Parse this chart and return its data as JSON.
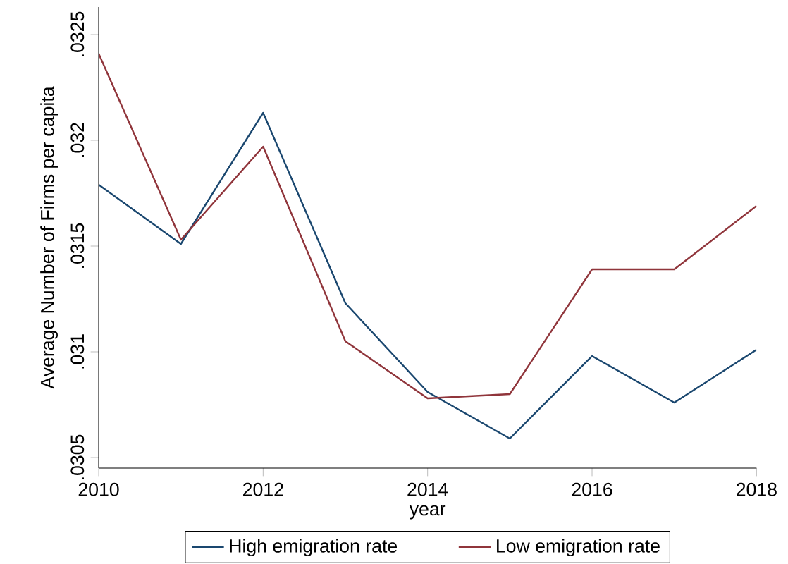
{
  "chart_data": {
    "type": "line",
    "xlabel": "year",
    "ylabel": "Average Number of Firms per capita",
    "x": [
      2010,
      2011,
      2012,
      2013,
      2014,
      2015,
      2016,
      2017,
      2018
    ],
    "series": [
      {
        "name": "High emigration rate",
        "color": "#1a476f",
        "values": [
          0.03179,
          0.03151,
          0.03213,
          0.03123,
          0.03081,
          0.03059,
          0.03098,
          0.03076,
          0.03101
        ]
      },
      {
        "name": "Low emigration rate",
        "color": "#90353b",
        "values": [
          0.03241,
          0.03153,
          0.03197,
          0.03105,
          0.03078,
          0.0308,
          0.03139,
          0.03139,
          0.03169
        ]
      }
    ],
    "xlim": [
      2010,
      2018
    ],
    "xticks": [
      2010,
      2012,
      2014,
      2016,
      2018
    ],
    "ylim": [
      0.03045,
      0.03263
    ],
    "yticks": [
      {
        "value": 0.0305,
        "label": ".0305"
      },
      {
        "value": 0.031,
        "label": ".031"
      },
      {
        "value": 0.0315,
        "label": ".0315"
      },
      {
        "value": 0.032,
        "label": ".032"
      },
      {
        "value": 0.0325,
        "label": ".0325"
      }
    ],
    "grid": false,
    "legend": "bottom",
    "marker": "none",
    "line_style": "solid"
  }
}
